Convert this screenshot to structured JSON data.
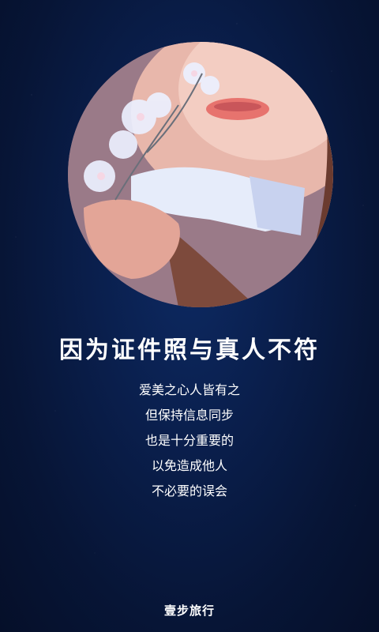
{
  "headline": "因为证件照与真人不符",
  "body_lines": [
    "爱美之心人皆有之",
    "但保持信息同步",
    "也是十分重要的",
    "以免造成他人",
    "不必要的误会"
  ],
  "footer_brand": "壹步旅行"
}
